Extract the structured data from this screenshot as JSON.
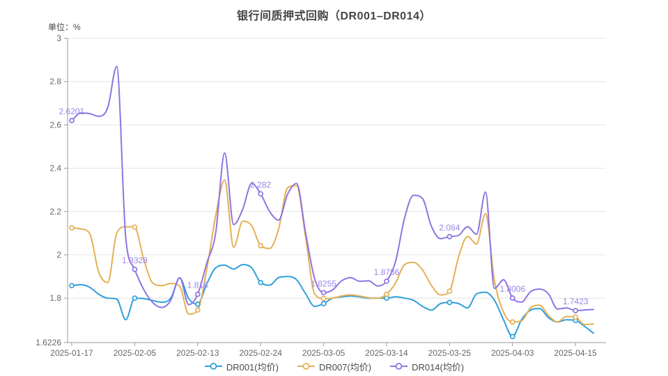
{
  "chart_data": {
    "type": "line",
    "title": "银行间质押式回购（DR001–DR014）",
    "unit_label": "单位：%",
    "n_points": 59,
    "x_tick_indices": [
      0,
      7,
      14,
      21,
      28,
      35,
      42,
      49,
      56
    ],
    "x_tick_labels": [
      "2025-01-17",
      "2025-02-05",
      "2025-02-13",
      "2025-02-24",
      "2025-03-05",
      "2025-03-14",
      "2025-03-25",
      "2025-04-03",
      "2025-04-15"
    ],
    "y_axis": {
      "axis_max": 3,
      "axis_min": 1.6226,
      "axis_min_label": "1.6226",
      "grid_values": [
        3,
        2.8,
        2.6,
        2.4,
        2.2,
        2,
        1.8
      ],
      "grid_labels": [
        "3",
        "2.8",
        "2.6",
        "2.4",
        "2.2",
        "2",
        "1.8"
      ],
      "grid_on": true
    },
    "legend_position": "bottom",
    "series": [
      {
        "name": "DR001(均价)",
        "color": "#2E9FDB",
        "values": [
          1.858,
          1.862,
          1.85,
          1.818,
          1.8,
          1.796,
          1.7,
          1.8,
          1.798,
          1.789,
          1.781,
          1.8,
          1.893,
          1.798,
          1.772,
          1.865,
          1.94,
          1.952,
          1.934,
          1.955,
          1.94,
          1.872,
          1.86,
          1.895,
          1.9,
          1.885,
          1.82,
          1.762,
          1.775,
          1.8,
          1.806,
          1.81,
          1.806,
          1.8,
          1.8,
          1.8,
          1.806,
          1.8,
          1.79,
          1.762,
          1.745,
          1.775,
          1.78,
          1.775,
          1.755,
          1.82,
          1.827,
          1.79,
          1.7,
          1.6226,
          1.7,
          1.745,
          1.752,
          1.71,
          1.69,
          1.7,
          1.697,
          1.67,
          1.638
        ]
      },
      {
        "name": "DR007(均价)",
        "color": "#E5AF55",
        "values": [
          2.125,
          2.12,
          2.098,
          1.92,
          1.872,
          2.1,
          2.13,
          2.128,
          1.98,
          1.87,
          1.858,
          1.868,
          1.855,
          1.726,
          1.745,
          1.93,
          2.18,
          2.345,
          2.035,
          2.155,
          2.135,
          2.042,
          2.03,
          2.12,
          2.31,
          2.32,
          2.08,
          1.82,
          1.798,
          1.8,
          1.81,
          1.815,
          1.81,
          1.802,
          1.8,
          1.818,
          1.87,
          1.955,
          1.965,
          1.93,
          1.858,
          1.815,
          1.832,
          1.99,
          2.085,
          2.05,
          2.19,
          1.88,
          1.735,
          1.69,
          1.695,
          1.755,
          1.768,
          1.72,
          1.69,
          1.715,
          1.713,
          1.678,
          1.681
        ]
      },
      {
        "name": "DR014(均价)",
        "color": "#8D74E2",
        "label_color": "#9B85EB",
        "values": [
          2.6201,
          2.655,
          2.652,
          2.64,
          2.68,
          2.87,
          2.08,
          1.9328,
          1.84,
          1.78,
          1.757,
          1.79,
          1.895,
          1.77,
          1.818,
          1.96,
          2.1,
          2.47,
          2.14,
          2.21,
          2.33,
          2.282,
          2.2,
          2.16,
          2.28,
          2.33,
          2.1,
          1.89,
          1.8255,
          1.838,
          1.88,
          1.895,
          1.878,
          1.88,
          1.856,
          1.8786,
          1.97,
          2.17,
          2.275,
          2.26,
          2.13,
          2.075,
          2.084,
          2.09,
          2.13,
          2.095,
          2.29,
          1.845,
          1.885,
          1.8006,
          1.782,
          1.83,
          1.842,
          1.82,
          1.75,
          1.755,
          1.7423,
          1.745,
          1.748
        ],
        "point_labels": [
          {
            "index": 0,
            "text": "2.6201"
          },
          {
            "index": 7,
            "text": "1.9328"
          },
          {
            "index": 14,
            "text": "1.818"
          },
          {
            "index": 21,
            "text": "2.282"
          },
          {
            "index": 28,
            "text": "1.8255"
          },
          {
            "index": 35,
            "text": "1.8786"
          },
          {
            "index": 42,
            "text": "2.084"
          },
          {
            "index": 49,
            "text": "1.8006"
          },
          {
            "index": 56,
            "text": "1.7423"
          }
        ]
      }
    ]
  },
  "style": {
    "grid_color": "#e4e4e4",
    "axis_color": "#999999",
    "axis_text_color": "#666666"
  }
}
